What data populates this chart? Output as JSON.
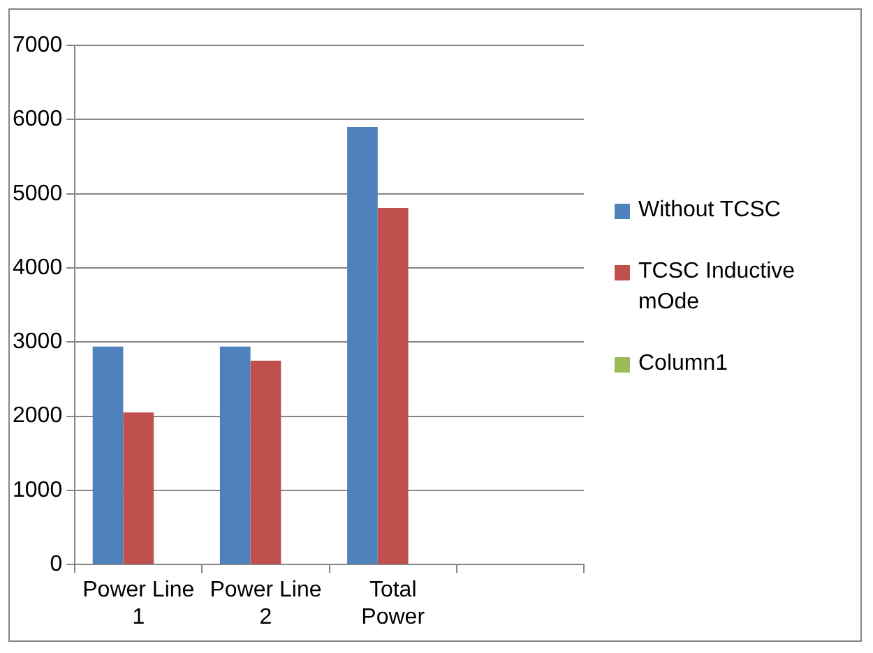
{
  "chart_data": {
    "type": "bar",
    "categories": [
      "Power Line 1",
      "Power Line 2",
      "Total Power",
      null
    ],
    "series": [
      {
        "name": "Without TCSC",
        "color": "#4f81bd",
        "values": [
          2940,
          2940,
          5900,
          null
        ]
      },
      {
        "name": "TCSC Inductive mOde",
        "color": "#c0504d",
        "values": [
          2050,
          2750,
          4810,
          null
        ]
      },
      {
        "name": "Column1",
        "color": "#9bbb59",
        "values": [
          null,
          null,
          null,
          null
        ]
      }
    ],
    "ylim": [
      0,
      7000
    ],
    "yticks": [
      0,
      1000,
      2000,
      3000,
      4000,
      5000,
      6000,
      7000
    ],
    "grid": "y",
    "legend": "right"
  }
}
